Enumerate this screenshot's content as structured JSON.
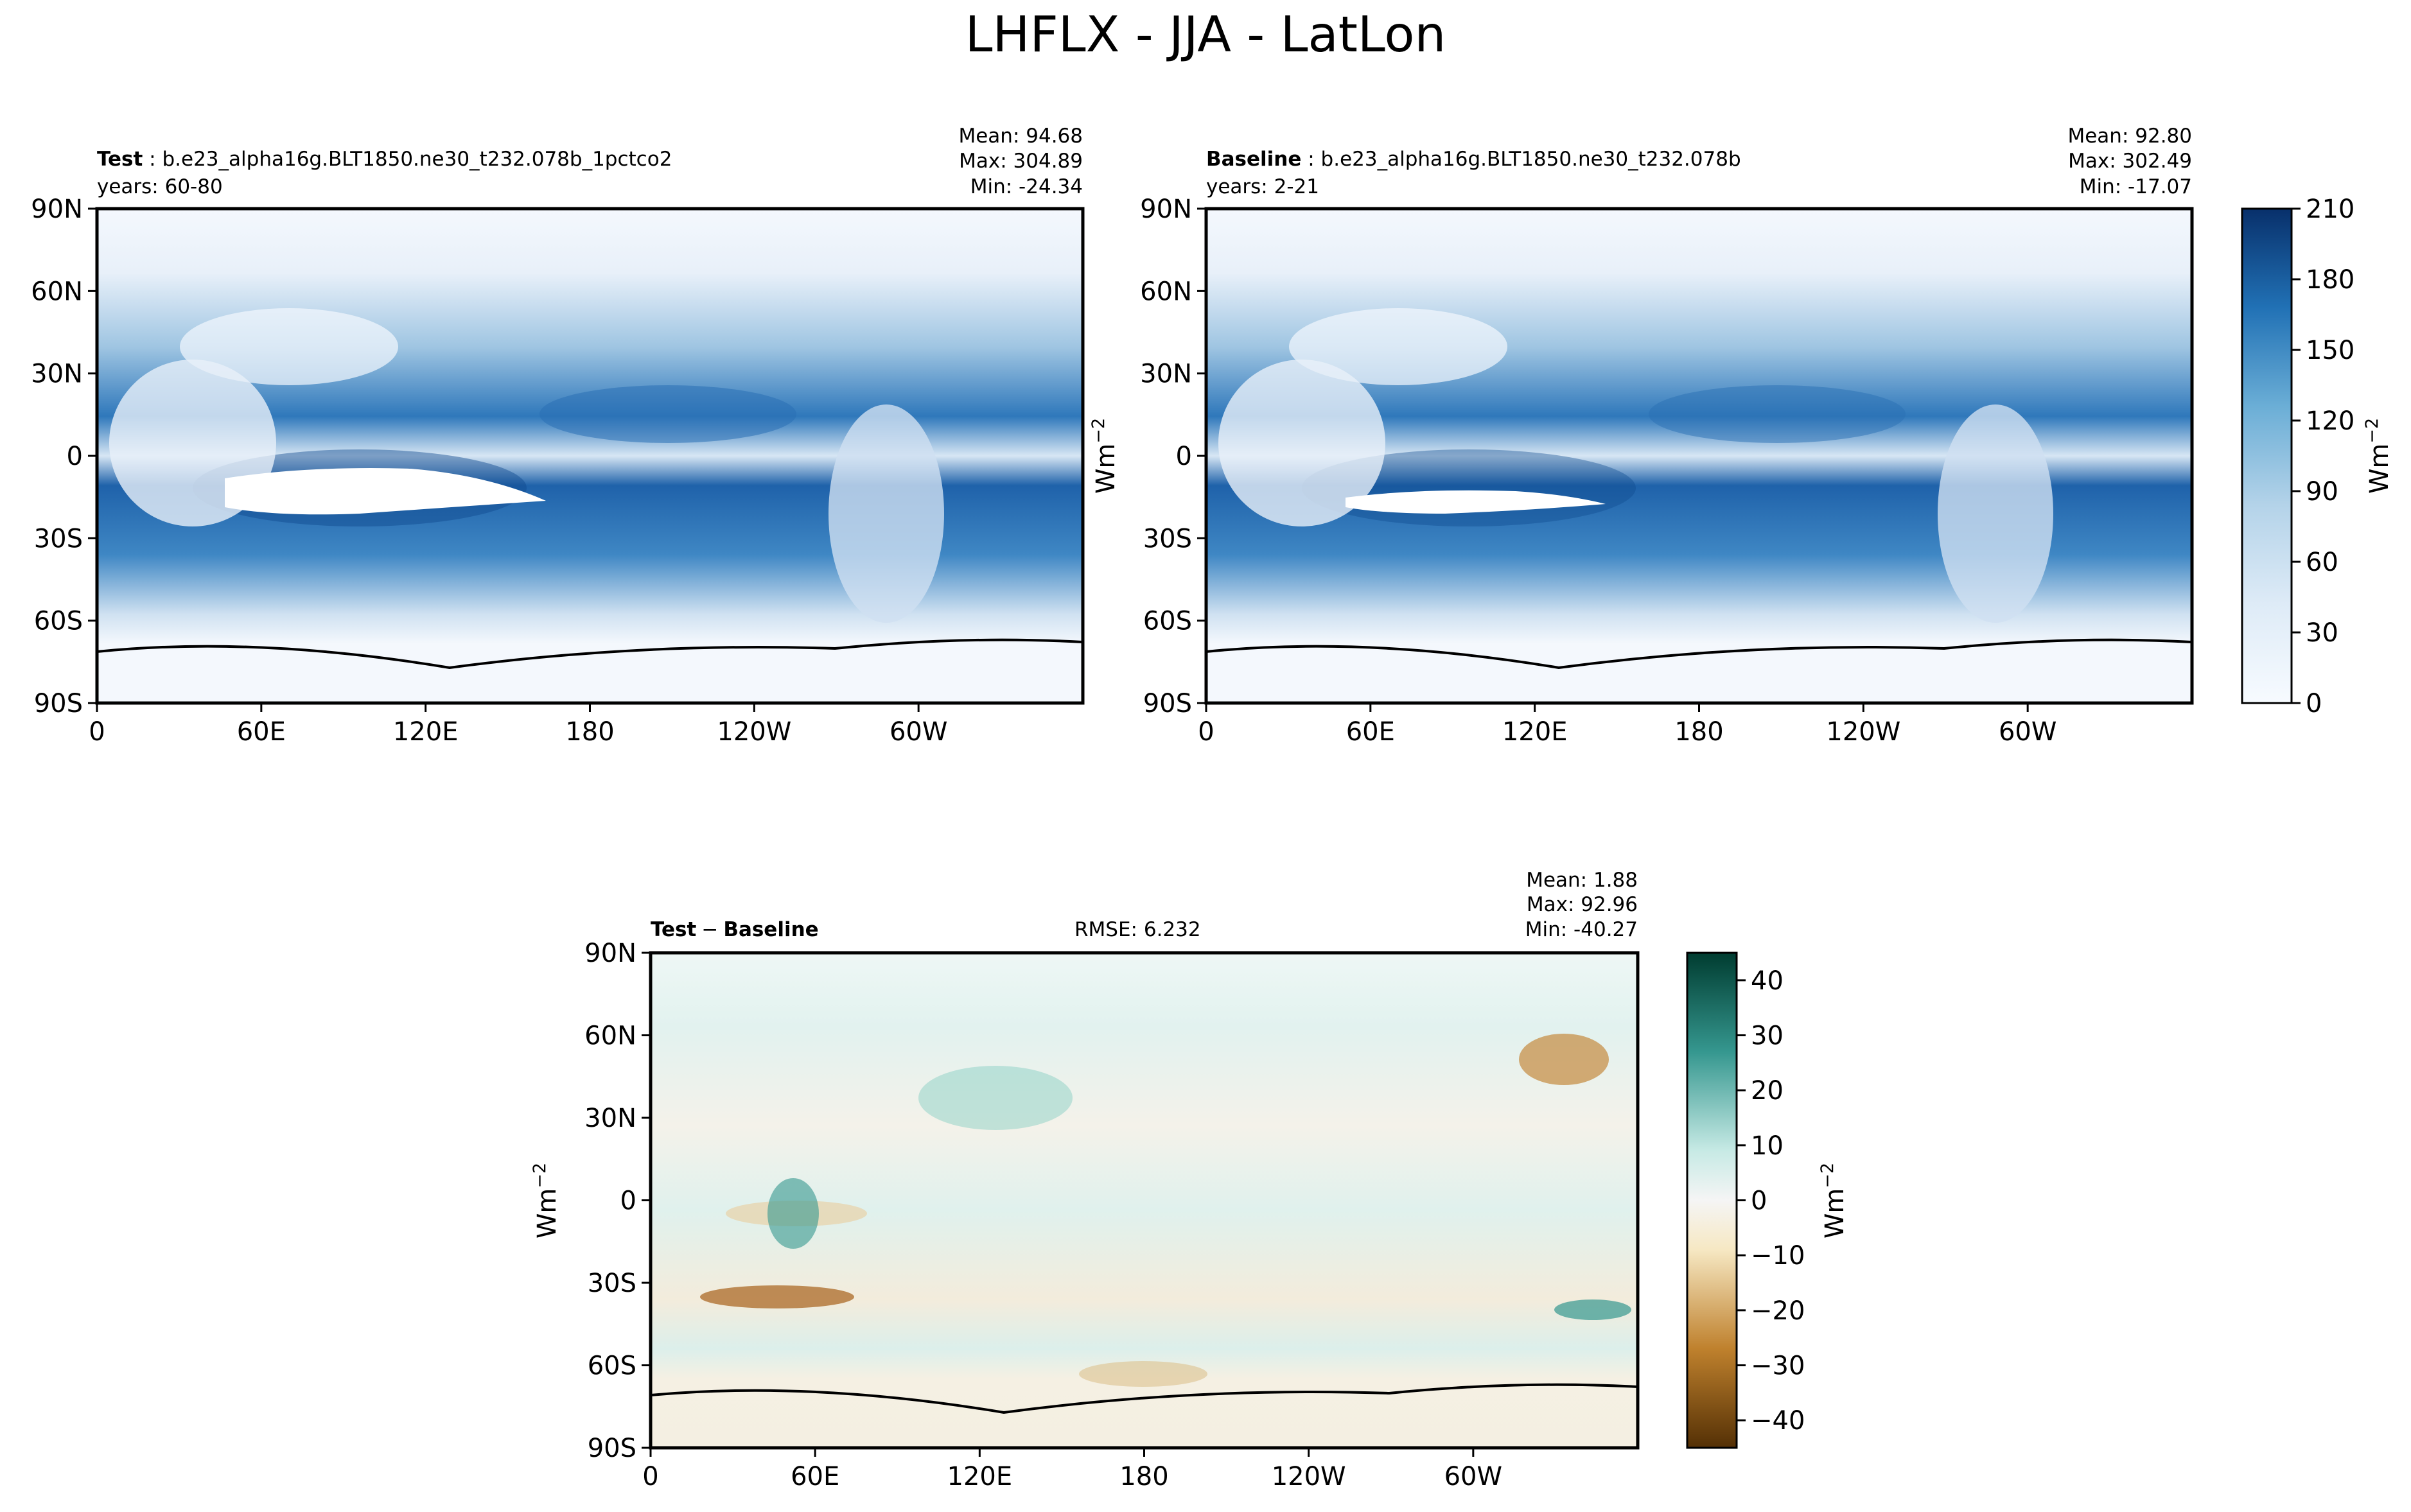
{
  "figure_title": "LHFLX - JJA - LatLon",
  "chart_data": [
    {
      "type": "heatmap",
      "panel_label": "Test",
      "case_name": "b.e23_alpha16g.BLT1850.ne30_t232.078b_1pctco2",
      "years": "years: 60-80",
      "stats": {
        "mean": "Mean: 94.68",
        "max": "Max: 304.89",
        "min": "Min: -24.34"
      },
      "x_ticks": [
        "0",
        "60E",
        "120E",
        "180",
        "120W",
        "60W"
      ],
      "y_ticks": [
        "90N",
        "60N",
        "30N",
        "0",
        "30S",
        "60S",
        "90S"
      ],
      "xlim": [
        0,
        360
      ],
      "ylim": [
        -90,
        90
      ],
      "colormap": "Blues",
      "colorbar_ticks": [
        "0",
        "30",
        "60",
        "90",
        "120",
        "150",
        "180",
        "210"
      ],
      "colorbar_range": [
        0,
        210
      ],
      "colorbar_label": "Wm",
      "colorbar_label_exp": "−2"
    },
    {
      "type": "heatmap",
      "panel_label": "Baseline",
      "case_name": "b.e23_alpha16g.BLT1850.ne30_t232.078b",
      "years": "years: 2-21",
      "stats": {
        "mean": "Mean: 92.80",
        "max": "Max: 302.49",
        "min": "Min: -17.07"
      },
      "x_ticks": [
        "0",
        "60E",
        "120E",
        "180",
        "120W",
        "60W"
      ],
      "y_ticks": [
        "90N",
        "60N",
        "30N",
        "0",
        "30S",
        "60S",
        "90S"
      ],
      "xlim": [
        0,
        360
      ],
      "ylim": [
        -90,
        90
      ],
      "ylabel": "Wm",
      "ylabel_exp": "−2",
      "colormap": "Blues"
    },
    {
      "type": "heatmap",
      "panel_label_a": "Test",
      "panel_label_op": "−",
      "panel_label_b": "Baseline",
      "rmse": "RMSE: 6.232",
      "stats": {
        "mean": "Mean:  1.88",
        "max": "Max: 92.96",
        "min": "Min: -40.27"
      },
      "x_ticks": [
        "0",
        "60E",
        "120E",
        "180",
        "120W",
        "60W"
      ],
      "y_ticks": [
        "90N",
        "60N",
        "30N",
        "0",
        "30S",
        "60S",
        "90S"
      ],
      "xlim": [
        0,
        360
      ],
      "ylim": [
        -90,
        90
      ],
      "ylabel": "Wm",
      "ylabel_exp": "−2",
      "colormap": "BrBG",
      "colorbar_ticks": [
        "−40",
        "−30",
        "−20",
        "−10",
        "0",
        "10",
        "20",
        "30",
        "40"
      ],
      "colorbar_range": [
        -45,
        45
      ],
      "colorbar_label": "Wm",
      "colorbar_label_exp": "−2"
    }
  ]
}
